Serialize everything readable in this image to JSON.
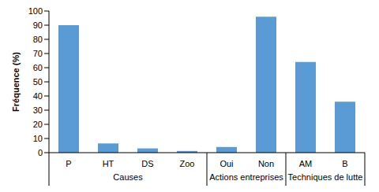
{
  "chart_data": {
    "type": "bar",
    "y_label": "Fréquence (%)",
    "categories": [
      "P",
      "HT",
      "DS",
      "Zoo",
      "Oui",
      "Non",
      "AM",
      "B"
    ],
    "values": [
      90,
      6.5,
      3,
      1.2,
      4,
      96,
      64,
      36
    ],
    "groups": [
      {
        "name": "Causes",
        "categories": [
          "P",
          "HT",
          "DS",
          "Zoo"
        ]
      },
      {
        "name": "Actions entreprises",
        "categories": [
          "Oui",
          "Non"
        ]
      },
      {
        "name": "Techniques de lutte",
        "categories": [
          "AM",
          "B"
        ]
      }
    ],
    "color": "#5b9bd5",
    "ylim": [
      0,
      100
    ],
    "yticks": [
      0,
      10,
      20,
      30,
      40,
      50,
      60,
      70,
      80,
      90,
      100
    ],
    "grid": false
  }
}
